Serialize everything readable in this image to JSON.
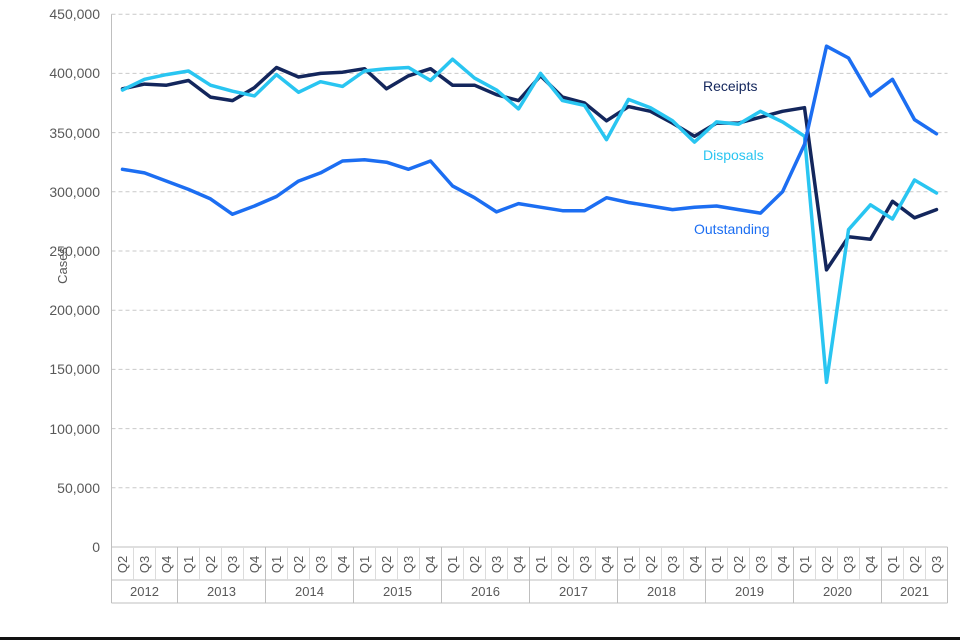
{
  "y_axis": {
    "title": "Cases",
    "tick_labels": [
      "450,000",
      "400,000",
      "350,000",
      "300,000",
      "250,000",
      "200,000",
      "150,000",
      "100,000",
      "50,000",
      "0"
    ],
    "tick_values": [
      450000,
      400000,
      350000,
      300000,
      250000,
      200000,
      150000,
      100000,
      50000,
      0
    ]
  },
  "x_axis": {
    "year_groups": [
      {
        "year": "2012",
        "quarters": [
          "Q2",
          "Q3",
          "Q4"
        ]
      },
      {
        "year": "2013",
        "quarters": [
          "Q1",
          "Q2",
          "Q3",
          "Q4"
        ]
      },
      {
        "year": "2014",
        "quarters": [
          "Q1",
          "Q2",
          "Q3",
          "Q4"
        ]
      },
      {
        "year": "2015",
        "quarters": [
          "Q1",
          "Q2",
          "Q3",
          "Q4"
        ]
      },
      {
        "year": "2016",
        "quarters": [
          "Q1",
          "Q2",
          "Q3",
          "Q4"
        ]
      },
      {
        "year": "2017",
        "quarters": [
          "Q1",
          "Q2",
          "Q3",
          "Q4"
        ]
      },
      {
        "year": "2018",
        "quarters": [
          "Q1",
          "Q2",
          "Q3",
          "Q4"
        ]
      },
      {
        "year": "2019",
        "quarters": [
          "Q1",
          "Q2",
          "Q3",
          "Q4"
        ]
      },
      {
        "year": "2020",
        "quarters": [
          "Q1",
          "Q2",
          "Q3",
          "Q4"
        ]
      },
      {
        "year": "2021",
        "quarters": [
          "Q1",
          "Q2",
          "Q3"
        ]
      }
    ]
  },
  "series_labels": {
    "receipts": {
      "text": "Receipts",
      "color": "#13265C"
    },
    "disposals": {
      "text": "Disposals",
      "color": "#29C5F1"
    },
    "outstanding": {
      "text": "Outstanding",
      "color": "#1C6EF2"
    }
  },
  "chart_data": {
    "type": "line",
    "title": "",
    "xlabel": "",
    "ylabel": "Cases",
    "ylim": [
      0,
      450000
    ],
    "grid": "horizontal-dashed",
    "legend": "inline-labels-right",
    "x_categories": [
      "2012 Q2",
      "2012 Q3",
      "2012 Q4",
      "2013 Q1",
      "2013 Q2",
      "2013 Q3",
      "2013 Q4",
      "2014 Q1",
      "2014 Q2",
      "2014 Q3",
      "2014 Q4",
      "2015 Q1",
      "2015 Q2",
      "2015 Q3",
      "2015 Q4",
      "2016 Q1",
      "2016 Q2",
      "2016 Q3",
      "2016 Q4",
      "2017 Q1",
      "2017 Q2",
      "2017 Q3",
      "2017 Q4",
      "2018 Q1",
      "2018 Q2",
      "2018 Q3",
      "2018 Q4",
      "2019 Q1",
      "2019 Q2",
      "2019 Q3",
      "2019 Q4",
      "2020 Q1",
      "2020 Q2",
      "2020 Q3",
      "2020 Q4",
      "2021 Q1",
      "2021 Q2",
      "2021 Q3"
    ],
    "series": [
      {
        "name": "Receipts",
        "color": "#13265C",
        "values": [
          387000,
          391000,
          390000,
          394000,
          380000,
          377000,
          388000,
          405000,
          397000,
          400000,
          401000,
          404000,
          387000,
          398000,
          404000,
          390000,
          390000,
          382000,
          377000,
          398000,
          380000,
          375000,
          360000,
          372000,
          368000,
          358000,
          347000,
          358000,
          358000,
          363000,
          368000,
          371000,
          234000,
          262000,
          260000,
          292000,
          278000,
          285000
        ]
      },
      {
        "name": "Disposals",
        "color": "#29C5F1",
        "values": [
          386000,
          395000,
          399000,
          402000,
          390000,
          385000,
          381000,
          399000,
          384000,
          393000,
          389000,
          402000,
          404000,
          405000,
          394000,
          412000,
          396000,
          386000,
          370000,
          400000,
          377000,
          373000,
          344000,
          378000,
          371000,
          360000,
          342000,
          359000,
          357000,
          368000,
          359000,
          347000,
          139000,
          268000,
          289000,
          277000,
          310000,
          299000
        ]
      },
      {
        "name": "Outstanding",
        "color": "#1C6EF2",
        "values": [
          319000,
          316000,
          309000,
          302000,
          294000,
          281000,
          288000,
          296000,
          309000,
          316000,
          326000,
          327000,
          325000,
          319000,
          326000,
          305000,
          295000,
          283000,
          290000,
          287000,
          284000,
          284000,
          295000,
          291000,
          288000,
          285000,
          287000,
          288000,
          285000,
          282000,
          300000,
          340000,
          423000,
          413000,
          381000,
          395000,
          361000,
          349000
        ]
      }
    ]
  }
}
